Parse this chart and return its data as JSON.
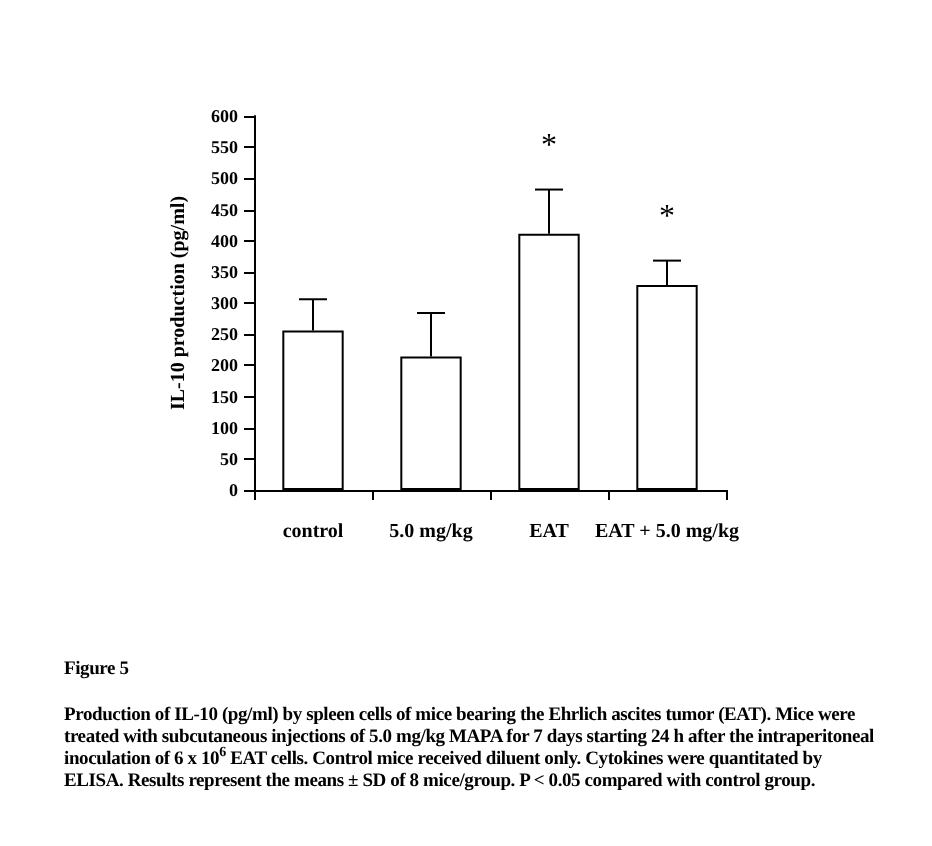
{
  "chart_data": {
    "type": "bar",
    "title": "Figure 5",
    "ylabel": "IL-10 production (pg/ml)",
    "categories": [
      "control",
      "5.0 mg/kg",
      "EAT",
      "EAT + 5.0 mg/kg"
    ],
    "values": [
      256,
      214,
      411,
      329
    ],
    "errors": [
      [
        256,
        306
      ],
      [
        214,
        284
      ],
      [
        411,
        482
      ],
      [
        329,
        368
      ]
    ],
    "color": "#ffffff",
    "ylim": [
      0,
      600
    ],
    "yticks": [
      0,
      50,
      100,
      150,
      200,
      250,
      300,
      350,
      400,
      450,
      500,
      550,
      600
    ],
    "grid": false,
    "annotations": [
      {
        "text": "*",
        "x": "EAT",
        "y": 482
      },
      {
        "text": "*",
        "x": "EAT + 5.0 mg/kg",
        "y": 368
      },
      "Production of IL-10 (pg/ml) by spleen cells of mice bearing the Ehrlich ascites tumor (EAT). Mice were treated with subcutaneous injections of 5.0 mg/kg MAPA for 7 days starting 24 h after the intraperitoneal inoculation of 6 x 10$^{6}$ EAT cells. Control mice received diluent only. Cytokines were quantitated by ELISA. Results represent the means ± SD of 8 mice/group. P < 0.05 compared with control group."
    ]
  }
}
